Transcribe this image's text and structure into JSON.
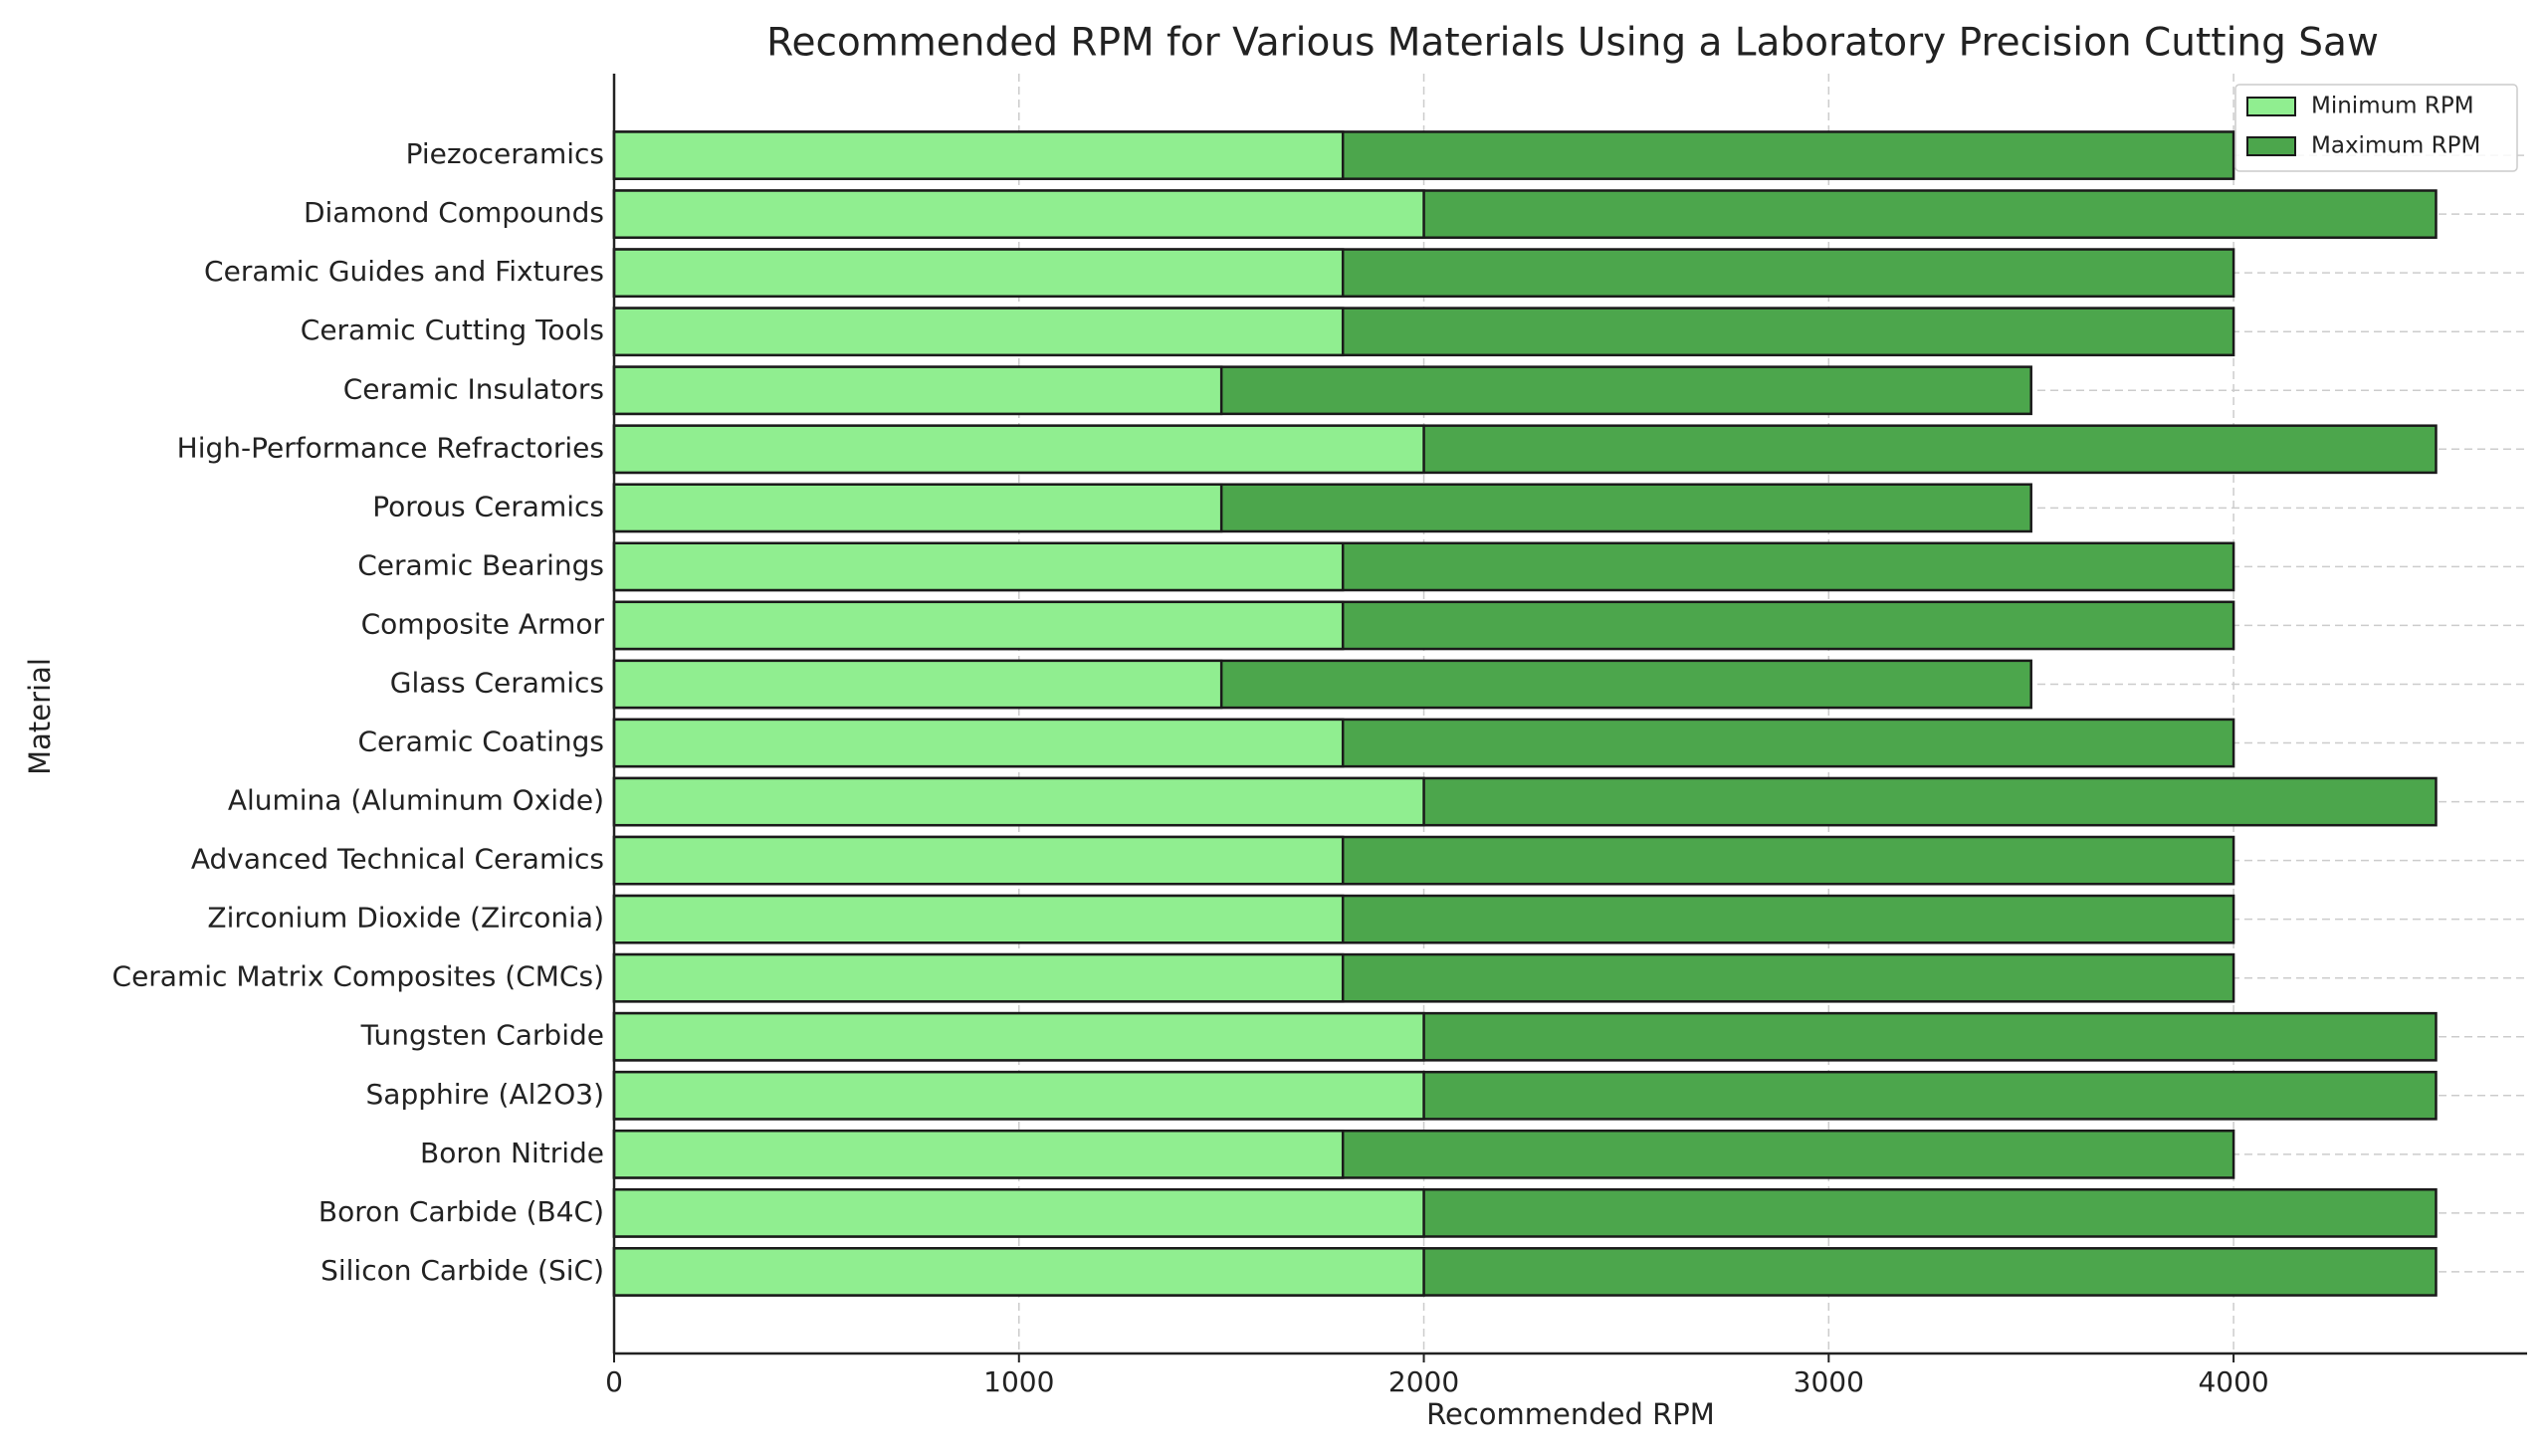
{
  "chart_data": {
    "type": "barh",
    "title": "Recommended RPM for Various Materials Using a Laboratory Precision Cutting Saw",
    "xlabel": "Recommended RPM",
    "ylabel": "Material",
    "categories": [
      "Silicon Carbide (SiC)",
      "Boron Carbide (B4C)",
      "Boron Nitride",
      "Sapphire (Al2O3)",
      "Tungsten Carbide",
      "Ceramic Matrix Composites (CMCs)",
      "Zirconium Dioxide (Zirconia)",
      "Advanced Technical Ceramics",
      "Alumina (Aluminum Oxide)",
      "Ceramic Coatings",
      "Glass Ceramics",
      "Composite Armor",
      "Ceramic Bearings",
      "Porous Ceramics",
      "High-Performance Refractories",
      "Ceramic Insulators",
      "Ceramic Cutting Tools",
      "Ceramic Guides and Fixtures",
      "Diamond Compounds",
      "Piezoceramics"
    ],
    "series": [
      {
        "name": "Minimum RPM",
        "color": "#90ee90",
        "values": [
          2000,
          2000,
          1800,
          2000,
          2000,
          1800,
          1800,
          1800,
          2000,
          1800,
          1500,
          1800,
          1800,
          1500,
          2000,
          1500,
          1800,
          1800,
          2000,
          1800
        ]
      },
      {
        "name": "Maximum RPM",
        "color": "#4ca64c",
        "values": [
          4500,
          4500,
          4000,
          4500,
          4500,
          4000,
          4000,
          4000,
          4500,
          4000,
          3500,
          4000,
          4000,
          3500,
          4500,
          3500,
          4000,
          4000,
          4500,
          4000
        ]
      }
    ],
    "xlim": [
      0,
      4725
    ],
    "xticks": [
      0,
      1000,
      2000,
      3000,
      4000
    ],
    "grid": true,
    "legend": "upper right"
  }
}
